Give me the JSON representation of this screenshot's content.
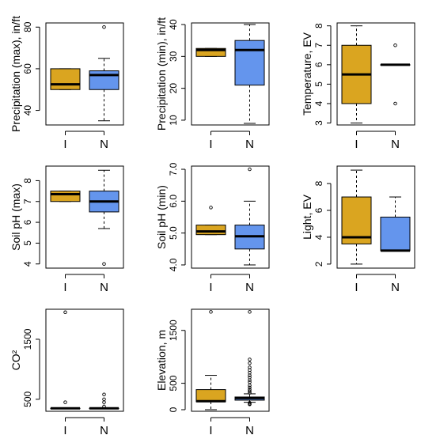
{
  "palette": {
    "I": "#DAA520",
    "N": "#6495ED"
  },
  "chart_data": [
    {
      "type": "boxplot",
      "ylabel": "Precipitation (max), in/ft",
      "ylim": [
        33,
        82
      ],
      "yticks": [
        40,
        60,
        80
      ],
      "categories": [
        "I",
        "N"
      ],
      "boxes": [
        {
          "category": "I",
          "whisker_low": 50,
          "q1": 50,
          "median": 52.5,
          "q3": 60,
          "whisker_high": 60,
          "outliers": []
        },
        {
          "category": "N",
          "whisker_low": 35,
          "q1": 50,
          "median": 57,
          "q3": 59,
          "whisker_high": 65,
          "outliers": [
            80
          ]
        }
      ]
    },
    {
      "type": "boxplot",
      "ylabel": "Precipitation (min), in/ft",
      "ylim": [
        8.5,
        40.5
      ],
      "yticks": [
        10,
        20,
        30,
        40
      ],
      "categories": [
        "I",
        "N"
      ],
      "boxes": [
        {
          "category": "I",
          "whisker_low": 30,
          "q1": 30,
          "median": 32,
          "q3": 32.5,
          "whisker_high": 32.5,
          "outliers": []
        },
        {
          "category": "N",
          "whisker_low": 9,
          "q1": 21,
          "median": 32,
          "q3": 35,
          "whisker_high": 40,
          "outliers": []
        }
      ]
    },
    {
      "type": "boxplot",
      "ylabel": "Temperature, EV",
      "ylim": [
        2.9,
        8.15
      ],
      "yticks": [
        3,
        4,
        5,
        6,
        7,
        8
      ],
      "categories": [
        "I",
        "N"
      ],
      "boxes": [
        {
          "category": "I",
          "whisker_low": 3,
          "q1": 4,
          "median": 5.5,
          "q3": 7,
          "whisker_high": 8,
          "outliers": []
        },
        {
          "category": "N",
          "whisker_low": 6,
          "q1": 6,
          "median": 6,
          "q3": 6,
          "whisker_high": 6,
          "outliers": [
            4,
            7
          ]
        }
      ]
    },
    {
      "type": "boxplot",
      "ylabel": "Soil pH (max)",
      "ylim": [
        3.8,
        8.7
      ],
      "yticks": [
        4,
        5,
        6,
        7,
        8
      ],
      "categories": [
        "I",
        "N"
      ],
      "boxes": [
        {
          "category": "I",
          "whisker_low": 7,
          "q1": 7,
          "median": 7.35,
          "q3": 7.5,
          "whisker_high": 7.5,
          "outliers": []
        },
        {
          "category": "N",
          "whisker_low": 5.7,
          "q1": 6.5,
          "median": 7,
          "q3": 7.5,
          "whisker_high": 8.5,
          "outliers": [
            4
          ]
        }
      ]
    },
    {
      "type": "boxplot",
      "ylabel": "Soil pH (min)",
      "ylim": [
        3.9,
        7.1
      ],
      "yticks": [
        4.0,
        5.0,
        6.0,
        7.0
      ],
      "ytick_labels": [
        "4.0",
        "5.0",
        "6.0",
        "7.0"
      ],
      "categories": [
        "I",
        "N"
      ],
      "boxes": [
        {
          "category": "I",
          "whisker_low": 4.95,
          "q1": 4.95,
          "median": 5.05,
          "q3": 5.25,
          "whisker_high": 5.25,
          "outliers": [
            5.8
          ]
        },
        {
          "category": "N",
          "whisker_low": 4.0,
          "q1": 4.5,
          "median": 4.9,
          "q3": 5.25,
          "whisker_high": 6.0,
          "outliers": [
            7.0
          ]
        }
      ]
    },
    {
      "type": "boxplot",
      "ylabel": "Light, EV",
      "ylim": [
        1.7,
        9.3
      ],
      "yticks": [
        2,
        4,
        6,
        8
      ],
      "categories": [
        "I",
        "N"
      ],
      "boxes": [
        {
          "category": "I",
          "whisker_low": 2,
          "q1": 3.5,
          "median": 4,
          "q3": 7,
          "whisker_high": 9,
          "outliers": []
        },
        {
          "category": "N",
          "whisker_low": 3,
          "q1": 3,
          "median": 3,
          "q3": 5.5,
          "whisker_high": 7,
          "outliers": []
        }
      ]
    },
    {
      "type": "boxplot",
      "ylabel": "CO²",
      "ylim": [
        300,
        2000
      ],
      "yticks": [
        500,
        1500
      ],
      "categories": [
        "I",
        "N"
      ],
      "boxes": [
        {
          "category": "I",
          "whisker_low": 350,
          "q1": 350,
          "median": 350,
          "q3": 350,
          "whisker_high": 350,
          "outliers": [
            450,
            1950
          ]
        },
        {
          "category": "N",
          "whisker_low": 350,
          "q1": 350,
          "median": 350,
          "q3": 350,
          "whisker_high": 350,
          "outliers": [
            380,
            450,
            500,
            580
          ]
        }
      ]
    },
    {
      "type": "boxplot",
      "ylabel": "Elevation, m",
      "ylim": [
        -30,
        1900
      ],
      "yticks": [
        0,
        500,
        1500
      ],
      "categories": [
        "I",
        "N"
      ],
      "boxes": [
        {
          "category": "I",
          "whisker_low": 0,
          "q1": 150,
          "median": 160,
          "q3": 380,
          "whisker_high": 650,
          "outliers": [
            1850
          ]
        },
        {
          "category": "N",
          "whisker_low": 140,
          "q1": 180,
          "median": 220,
          "q3": 240,
          "whisker_high": 300,
          "outliers": [
            100,
            110,
            130,
            320,
            350,
            380,
            420,
            460,
            520,
            560,
            610,
            650,
            700,
            750,
            800,
            880,
            950,
            1850
          ]
        }
      ]
    }
  ]
}
